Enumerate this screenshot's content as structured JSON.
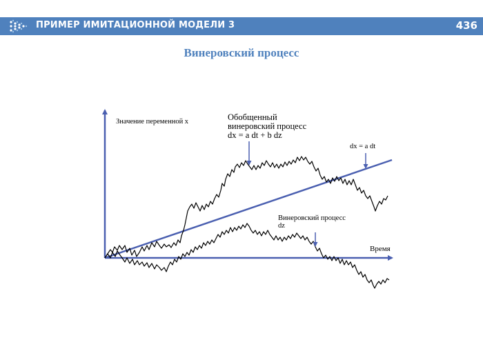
{
  "header": {
    "title": "ПРИМЕР ИМИТАЦИОННОЙ МОДЕЛИ 3",
    "page_number": "436",
    "bg_color": "#4f81bd",
    "logo_icon": "dots-arrow-logo-icon"
  },
  "slide": {
    "title": "Винеровский процесс"
  },
  "diagram": {
    "axis_color": "#4a5fb0",
    "y_axis_label": "Значение переменной x",
    "x_axis_label": "Время",
    "generalized_label_line1": "Обобщенный",
    "generalized_label_line2": "винеровский процесс",
    "generalized_label_line3": "dx = a dt + b dz",
    "drift_label": "dx = a dt",
    "wiener_label_line1": "Винеровский процесс",
    "wiener_label_line2": "dz"
  }
}
